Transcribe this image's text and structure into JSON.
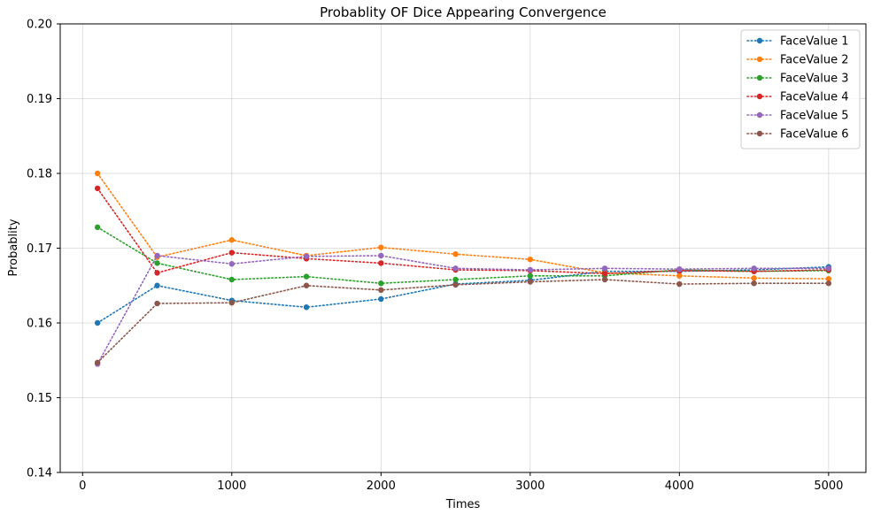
{
  "chart_data": {
    "type": "line",
    "title": "Probablity OF Dice Appearing Convergence",
    "xlabel": "Times",
    "ylabel": "Probablity",
    "xlim": [
      -150,
      5250
    ],
    "ylim": [
      0.14,
      0.2
    ],
    "xticks": [
      0,
      1000,
      2000,
      3000,
      4000,
      5000
    ],
    "xtick_labels": [
      "0",
      "1000",
      "2000",
      "3000",
      "4000",
      "5000"
    ],
    "yticks": [
      0.14,
      0.15,
      0.16,
      0.17,
      0.18,
      0.19,
      0.2
    ],
    "ytick_labels": [
      "0.14",
      "0.15",
      "0.16",
      "0.17",
      "0.18",
      "0.19",
      "0.20"
    ],
    "grid": true,
    "legend_position": "top-right",
    "line_style": "dotted",
    "marker": "circle",
    "x": [
      100,
      500,
      1000,
      1500,
      2000,
      2500,
      3000,
      3500,
      4000,
      4500,
      5000
    ],
    "series": [
      {
        "name": "FaceValue 1",
        "color": "#1f77b4",
        "values": [
          0.16,
          0.165,
          0.163,
          0.1621,
          0.1632,
          0.1652,
          0.1657,
          0.1669,
          0.1669,
          0.1671,
          0.1675
        ]
      },
      {
        "name": "FaceValue 2",
        "color": "#ff7f0e",
        "values": [
          0.18,
          0.1688,
          0.1711,
          0.169,
          0.1701,
          0.1692,
          0.1685,
          0.1667,
          0.1663,
          0.166,
          0.1659
        ]
      },
      {
        "name": "FaceValue 3",
        "color": "#2ca02c",
        "values": [
          0.1728,
          0.168,
          0.1658,
          0.1662,
          0.1653,
          0.1658,
          0.1663,
          0.1663,
          0.1671,
          0.1669,
          0.167
        ]
      },
      {
        "name": "FaceValue 4",
        "color": "#d62728",
        "values": [
          0.178,
          0.1667,
          0.1694,
          0.1686,
          0.168,
          0.1671,
          0.167,
          0.1666,
          0.167,
          0.1669,
          0.1671
        ]
      },
      {
        "name": "FaceValue 5",
        "color": "#9467bd",
        "values": [
          0.1545,
          0.169,
          0.1679,
          0.1689,
          0.169,
          0.1673,
          0.1671,
          0.1673,
          0.1672,
          0.1673,
          0.1673
        ]
      },
      {
        "name": "FaceValue 6",
        "color": "#8c564b",
        "values": [
          0.1547,
          0.1626,
          0.1627,
          0.165,
          0.1644,
          0.1651,
          0.1655,
          0.1658,
          0.1652,
          0.1653,
          0.1653
        ]
      }
    ]
  }
}
